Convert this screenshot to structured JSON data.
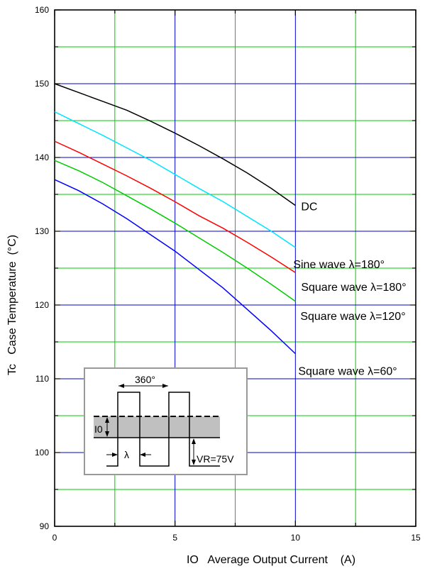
{
  "chart_data": {
    "type": "line",
    "xlabel": "IO   Average Output Current    (A)",
    "ylabel": "Tc   Case Temperature  (°C)",
    "xlim": [
      0,
      15
    ],
    "ylim": [
      90,
      160
    ],
    "x_ticks": [
      "0",
      "5",
      "10",
      "15"
    ],
    "y_ticks": [
      "90",
      "100",
      "110",
      "120",
      "130",
      "140",
      "150",
      "160"
    ],
    "grid": true,
    "colors": {
      "grid_major": "#0000cc",
      "grid_minor": "#00cc00"
    },
    "series": [
      {
        "name": "DC",
        "color": "#000000",
        "x": [
          0,
          1,
          2,
          3,
          4,
          5,
          6,
          7,
          8,
          9,
          10
        ],
        "y": [
          150,
          148.8,
          147.6,
          146.4,
          144.9,
          143.3,
          141.6,
          139.8,
          137.9,
          135.8,
          133.5
        ]
      },
      {
        "name": "Sine wave λ=180°",
        "color": "#00e5ff",
        "x": [
          0,
          1,
          2,
          3,
          4,
          5,
          6,
          7,
          8,
          9,
          10
        ],
        "y": [
          146.2,
          144.6,
          143,
          141.3,
          139.6,
          137.7,
          135.8,
          134,
          132,
          130,
          127.8
        ]
      },
      {
        "name": "Square wave λ=180°",
        "color": "#ff0000",
        "x": [
          0,
          1,
          2,
          3,
          4,
          5,
          6,
          7,
          8,
          9,
          10
        ],
        "y": [
          142.2,
          140.7,
          139.1,
          137.5,
          135.8,
          134,
          132.1,
          130.4,
          128.5,
          126.5,
          124.4
        ]
      },
      {
        "name": "Square wave λ=120°",
        "color": "#00cc00",
        "x": [
          0,
          1,
          2,
          3,
          4,
          5,
          6,
          7,
          8,
          9,
          10
        ],
        "y": [
          139.6,
          138.2,
          136.6,
          134.8,
          133,
          131.1,
          129.1,
          127.1,
          125,
          122.8,
          120.5
        ]
      },
      {
        "name": "Square wave λ=60°",
        "color": "#0000ff",
        "x": [
          0,
          1,
          2,
          3,
          4,
          5,
          6,
          7,
          8,
          9,
          10
        ],
        "y": [
          137,
          135.5,
          133.7,
          131.7,
          129.5,
          127.3,
          124.8,
          122.3,
          119.4,
          116.5,
          113.4
        ]
      }
    ],
    "inset": {
      "period_label": "360°",
      "current_label": "I0",
      "lambda_label": "λ",
      "voltage_label": "VR=75V",
      "colors": {
        "box_border": "#999999",
        "shade": "#c0c0c0"
      }
    }
  }
}
